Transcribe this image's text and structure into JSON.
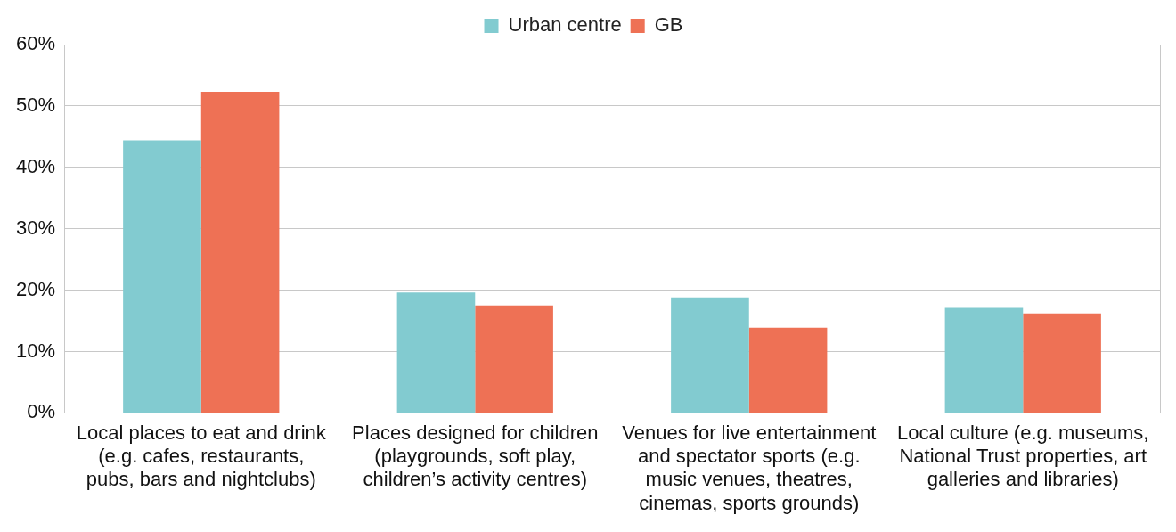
{
  "chart_data": {
    "type": "bar",
    "categories": [
      "Local places to eat and drink (e.g. cafes, restaurants, pubs, bars and nightclubs)",
      "Places designed for children (playgrounds, soft play, children’s activity centres)",
      "Venues for live entertainment and spectator sports (e.g. music venues, theatres, cinemas, sports grounds)",
      "Local culture (e.g. museums, National Trust properties, art galleries and libraries)"
    ],
    "series": [
      {
        "name": "Urban centre",
        "color": "#82cbd0",
        "values": [
          44.4,
          19.6,
          18.8,
          17.1
        ]
      },
      {
        "name": "GB",
        "color": "#ee7155",
        "values": [
          52.3,
          17.5,
          13.9,
          16.2
        ]
      }
    ],
    "ylim": [
      0,
      60
    ],
    "yticks": [
      {
        "value": 0,
        "label": "0%"
      },
      {
        "value": 10,
        "label": "10%"
      },
      {
        "value": 20,
        "label": "20%"
      },
      {
        "value": 30,
        "label": "30%"
      },
      {
        "value": 40,
        "label": "40%"
      },
      {
        "value": 50,
        "label": "50%"
      },
      {
        "value": 60,
        "label": "60%"
      }
    ],
    "grid": "y",
    "legend": "top"
  }
}
